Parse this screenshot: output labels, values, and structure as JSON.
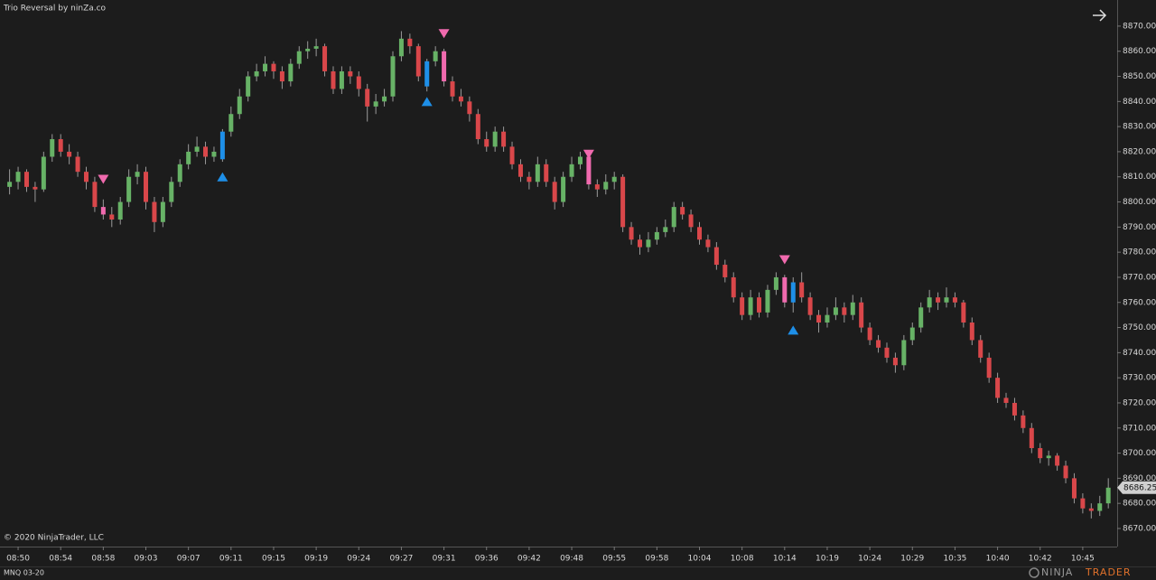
{
  "chart_data": {
    "type": "candlestick",
    "title": "Trio Reversal by ninZa.co",
    "copyright": "© 2020 NinjaTrader, LLC",
    "instrument": "MNQ 03-20",
    "logo": {
      "left": "NINJA",
      "right": "TRADER"
    },
    "up_color": "#67b266",
    "down_color": "#d9474a",
    "wick_color": "#9a9a9a",
    "buy_color": "#1e8fe8",
    "sell_color": "#f06aae",
    "ylim": [
      8662.8,
      8880.4
    ],
    "yticks": [
      {
        "value": 8670,
        "label": "8670.00"
      },
      {
        "value": 8680,
        "label": "8680.00"
      },
      {
        "value": 8690,
        "label": "8690.00"
      },
      {
        "value": 8700,
        "label": "8700.00"
      },
      {
        "value": 8710,
        "label": "8710.00"
      },
      {
        "value": 8720,
        "label": "8720.00"
      },
      {
        "value": 8730,
        "label": "8730.00"
      },
      {
        "value": 8740,
        "label": "8740.00"
      },
      {
        "value": 8750,
        "label": "8750.00"
      },
      {
        "value": 8760,
        "label": "8760.00"
      },
      {
        "value": 8770,
        "label": "8770.00"
      },
      {
        "value": 8780,
        "label": "8780.00"
      },
      {
        "value": 8790,
        "label": "8790.00"
      },
      {
        "value": 8800,
        "label": "8800.00"
      },
      {
        "value": 8810,
        "label": "8810.00"
      },
      {
        "value": 8820,
        "label": "8820.00"
      },
      {
        "value": 8830,
        "label": "8830.00"
      },
      {
        "value": 8840,
        "label": "8840.00"
      },
      {
        "value": 8850,
        "label": "8850.00"
      },
      {
        "value": 8860,
        "label": "8860.00"
      },
      {
        "value": 8870,
        "label": "8870.00"
      }
    ],
    "categories": [
      null,
      "08:50",
      null,
      null,
      null,
      null,
      "08:54",
      null,
      null,
      null,
      null,
      "08:58",
      null,
      null,
      null,
      null,
      "09:03",
      null,
      null,
      null,
      null,
      "09:07",
      null,
      null,
      null,
      null,
      "09:11",
      null,
      null,
      null,
      null,
      "09:15",
      null,
      null,
      null,
      null,
      "09:19",
      null,
      null,
      null,
      null,
      "09:24",
      null,
      null,
      null,
      null,
      "09:27",
      null,
      null,
      null,
      null,
      "09:31",
      null,
      null,
      null,
      null,
      "09:36",
      null,
      null,
      null,
      null,
      "09:42",
      null,
      null,
      null,
      null,
      "09:48",
      null,
      null,
      null,
      null,
      "09:55",
      null,
      null,
      null,
      null,
      "09:58",
      null,
      null,
      null,
      null,
      "10:04",
      null,
      null,
      null,
      null,
      "10:08",
      null,
      null,
      null,
      null,
      "10:14",
      null,
      null,
      null,
      null,
      "10:19",
      null,
      null,
      null,
      null,
      "10:24",
      null,
      null,
      null,
      null,
      "10:29",
      null,
      null,
      null,
      null,
      "10:35",
      null,
      null,
      null,
      null,
      "10:40",
      null,
      null,
      null,
      null,
      "10:42",
      null,
      null,
      null,
      null,
      "10:45",
      null,
      null,
      null
    ],
    "ohlc": [
      [
        8806,
        8813,
        8803,
        8808
      ],
      [
        8808,
        8814,
        8805,
        8812
      ],
      [
        8812,
        8813,
        8804,
        8806
      ],
      [
        8806,
        8808,
        8800,
        8805
      ],
      [
        8805,
        8820,
        8804,
        8818
      ],
      [
        8818,
        8827,
        8816,
        8825
      ],
      [
        8825,
        8827,
        8818,
        8820
      ],
      [
        8820,
        8823,
        8815,
        8818
      ],
      [
        8818,
        8820,
        8810,
        8812
      ],
      [
        8812,
        8814,
        8805,
        8808
      ],
      [
        8808,
        8810,
        8796,
        8798
      ],
      [
        8798,
        8801,
        8793,
        8795
      ],
      [
        8795,
        8798,
        8790,
        8793
      ],
      [
        8793,
        8802,
        8791,
        8800
      ],
      [
        8800,
        8813,
        8798,
        8810
      ],
      [
        8810,
        8815,
        8807,
        8812
      ],
      [
        8812,
        8814,
        8797,
        8800
      ],
      [
        8800,
        8802,
        8788,
        8792
      ],
      [
        8792,
        8802,
        8790,
        8800
      ],
      [
        8800,
        8810,
        8798,
        8808
      ],
      [
        8808,
        8817,
        8806,
        8815
      ],
      [
        8815,
        8823,
        8813,
        8820
      ],
      [
        8820,
        8826,
        8818,
        8822
      ],
      [
        8822,
        8824,
        8815,
        8818
      ],
      [
        8818,
        8822,
        8816,
        8820
      ],
      [
        8817,
        8829,
        8816,
        8828
      ],
      [
        8828,
        8838,
        8826,
        8835
      ],
      [
        8835,
        8845,
        8833,
        8842
      ],
      [
        8842,
        8852,
        8840,
        8850
      ],
      [
        8850,
        8855,
        8848,
        8852
      ],
      [
        8852,
        8858,
        8850,
        8855
      ],
      [
        8855,
        8856,
        8849,
        8852
      ],
      [
        8852,
        8854,
        8845,
        8848
      ],
      [
        8848,
        8857,
        8846,
        8855
      ],
      [
        8855,
        8862,
        8853,
        8860
      ],
      [
        8860,
        8864,
        8857,
        8861
      ],
      [
        8861,
        8865,
        8858,
        8862
      ],
      [
        8862,
        8863,
        8850,
        8852
      ],
      [
        8852,
        8854,
        8843,
        8845
      ],
      [
        8845,
        8854,
        8843,
        8852
      ],
      [
        8852,
        8854,
        8847,
        8850
      ],
      [
        8850,
        8852,
        8842,
        8845
      ],
      [
        8845,
        8847,
        8832,
        8838
      ],
      [
        8838,
        8843,
        8835,
        8840
      ],
      [
        8840,
        8845,
        8838,
        8842
      ],
      [
        8842,
        8860,
        8840,
        8858
      ],
      [
        8858,
        8868,
        8856,
        8865
      ],
      [
        8865,
        8867,
        8859,
        8862
      ],
      [
        8862,
        8863,
        8848,
        8850
      ],
      [
        8846,
        8857,
        8844,
        8856
      ],
      [
        8856,
        8862,
        8854,
        8860
      ],
      [
        8860,
        8861,
        8846,
        8848
      ],
      [
        8848,
        8850,
        8840,
        8842
      ],
      [
        8842,
        8845,
        8838,
        8840
      ],
      [
        8840,
        8842,
        8832,
        8835
      ],
      [
        8835,
        8837,
        8823,
        8825
      ],
      [
        8825,
        8828,
        8820,
        8822
      ],
      [
        8822,
        8830,
        8820,
        8828
      ],
      [
        8828,
        8830,
        8820,
        8822
      ],
      [
        8822,
        8824,
        8813,
        8815
      ],
      [
        8815,
        8817,
        8808,
        8810
      ],
      [
        8810,
        8812,
        8805,
        8808
      ],
      [
        8808,
        8818,
        8806,
        8815
      ],
      [
        8815,
        8817,
        8806,
        8808
      ],
      [
        8808,
        8810,
        8797,
        8800
      ],
      [
        8800,
        8812,
        8798,
        8810
      ],
      [
        8810,
        8818,
        8808,
        8815
      ],
      [
        8815,
        8820,
        8813,
        8818
      ],
      [
        8818,
        8819,
        8805,
        8807
      ],
      [
        8807,
        8809,
        8802,
        8805
      ],
      [
        8805,
        8811,
        8803,
        8808
      ],
      [
        8808,
        8812,
        8805,
        8810
      ],
      [
        8810,
        8811,
        8788,
        8790
      ],
      [
        8790,
        8792,
        8783,
        8785
      ],
      [
        8785,
        8787,
        8779,
        8782
      ],
      [
        8782,
        8788,
        8780,
        8785
      ],
      [
        8785,
        8790,
        8783,
        8788
      ],
      [
        8788,
        8793,
        8786,
        8790
      ],
      [
        8790,
        8800,
        8788,
        8798
      ],
      [
        8798,
        8800,
        8793,
        8795
      ],
      [
        8795,
        8797,
        8788,
        8790
      ],
      [
        8790,
        8792,
        8783,
        8785
      ],
      [
        8785,
        8787,
        8780,
        8782
      ],
      [
        8782,
        8784,
        8773,
        8775
      ],
      [
        8775,
        8777,
        8768,
        8770
      ],
      [
        8770,
        8772,
        8760,
        8762
      ],
      [
        8762,
        8764,
        8753,
        8755
      ],
      [
        8755,
        8765,
        8753,
        8762
      ],
      [
        8762,
        8764,
        8754,
        8756
      ],
      [
        8756,
        8767,
        8754,
        8765
      ],
      [
        8765,
        8772,
        8763,
        8770
      ],
      [
        8770,
        8771,
        8758,
        8760
      ],
      [
        8760,
        8770,
        8756,
        8768
      ],
      [
        8768,
        8772,
        8760,
        8762
      ],
      [
        8762,
        8764,
        8753,
        8755
      ],
      [
        8755,
        8757,
        8748,
        8752
      ],
      [
        8752,
        8758,
        8750,
        8755
      ],
      [
        8755,
        8762,
        8753,
        8758
      ],
      [
        8758,
        8760,
        8752,
        8755
      ],
      [
        8755,
        8763,
        8753,
        8760
      ],
      [
        8760,
        8762,
        8748,
        8750
      ],
      [
        8750,
        8752,
        8743,
        8745
      ],
      [
        8745,
        8747,
        8740,
        8742
      ],
      [
        8742,
        8744,
        8736,
        8738
      ],
      [
        8738,
        8740,
        8732,
        8735
      ],
      [
        8735,
        8747,
        8733,
        8745
      ],
      [
        8745,
        8752,
        8743,
        8750
      ],
      [
        8750,
        8760,
        8748,
        8758
      ],
      [
        8758,
        8765,
        8756,
        8762
      ],
      [
        8762,
        8764,
        8757,
        8760
      ],
      [
        8760,
        8766,
        8758,
        8762
      ],
      [
        8762,
        8764,
        8758,
        8760
      ],
      [
        8760,
        8761,
        8750,
        8752
      ],
      [
        8752,
        8754,
        8743,
        8745
      ],
      [
        8745,
        8747,
        8736,
        8738
      ],
      [
        8738,
        8740,
        8728,
        8730
      ],
      [
        8730,
        8732,
        8720,
        8722
      ],
      [
        8722,
        8724,
        8718,
        8720
      ],
      [
        8720,
        8722,
        8713,
        8715
      ],
      [
        8715,
        8717,
        8708,
        8710
      ],
      [
        8710,
        8712,
        8700,
        8702
      ],
      [
        8702,
        8704,
        8696,
        8698
      ],
      [
        8698,
        8701,
        8695,
        8699
      ],
      [
        8699,
        8700,
        8693,
        8695
      ],
      [
        8695,
        8697,
        8688,
        8690
      ],
      [
        8690,
        8692,
        8680,
        8682
      ],
      [
        8682,
        8684,
        8676,
        8678
      ],
      [
        8678,
        8680,
        8674,
        8677
      ],
      [
        8677,
        8683,
        8675,
        8680
      ],
      [
        8680,
        8690,
        8678,
        8686.25
      ]
    ],
    "signals": [
      {
        "index": 11,
        "type": "sell",
        "price": 8809
      },
      {
        "index": 25,
        "type": "buy",
        "price": 8810
      },
      {
        "index": 49,
        "type": "buy",
        "price": 8840
      },
      {
        "index": 51,
        "type": "sell",
        "price": 8867
      },
      {
        "index": 68,
        "type": "sell",
        "price": 8819
      },
      {
        "index": 91,
        "type": "sell",
        "price": 8777
      },
      {
        "index": 92,
        "type": "buy",
        "price": 8749
      }
    ]
  }
}
